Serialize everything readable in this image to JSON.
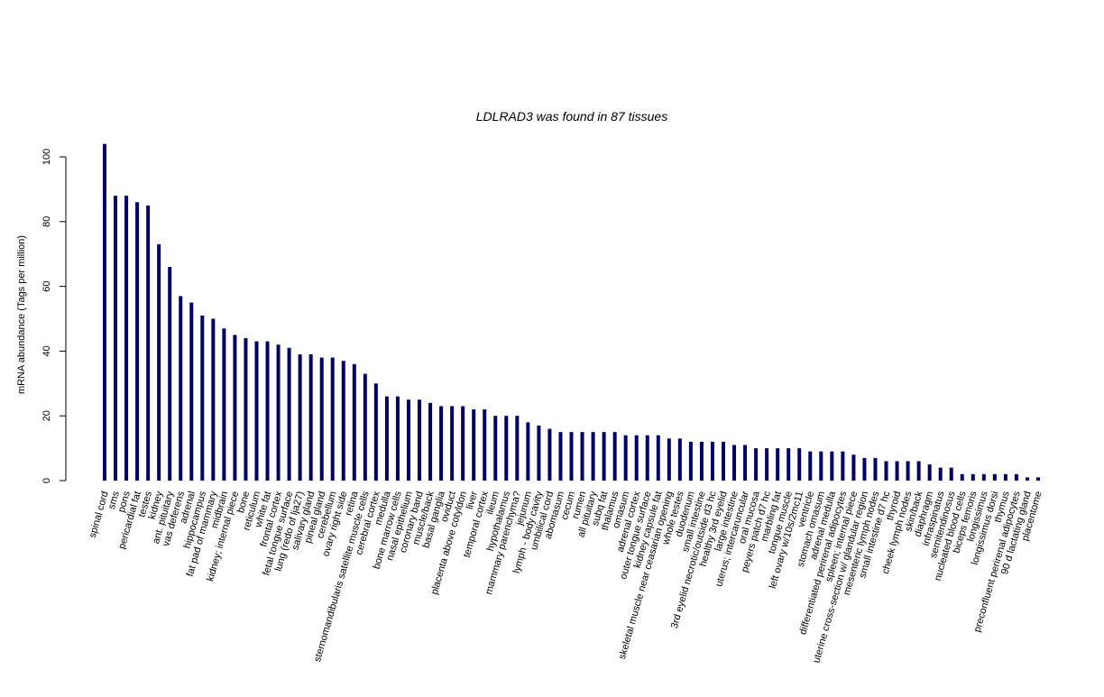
{
  "chart_data": {
    "type": "bar",
    "title": "LDLRAD3  was found in  87  tissues",
    "xlabel": "",
    "ylabel": "mRNA abundance (Tags per million)",
    "ylim": [
      0,
      104
    ],
    "yticks": [
      0,
      20,
      40,
      60,
      80,
      100
    ],
    "grid": false,
    "bar_color": "#000066",
    "categories": [
      "spinal cord",
      "sms",
      "pons",
      "pericardial fat",
      "testes",
      "kidney",
      "ant. pituitary",
      "vas deferens",
      "adrenal",
      "hippocampus",
      "fat pad of mammary",
      "midbrain",
      "kidney; internal piece",
      "bone",
      "reticulum",
      "white fat",
      "frontal cortex",
      "fetal tongue surface",
      "lung (redo of lja27)",
      "salivary gland",
      "pineal gland",
      "cerebellum",
      "ovary right side",
      "retina",
      "sternomandibularis satellite muscle cells",
      "cerebral cortex",
      "medulla",
      "bone marrow cells",
      "nasal epithelium",
      "coronary band",
      "muscle/back",
      "basal ganglia",
      "oviduct",
      "placenta above cotyldon",
      "liver",
      "temporal cortex",
      "ileum",
      "hypothalamus",
      "mammary parenchyma?",
      "jejunum",
      "lymph - body cavity",
      "umbilical cord",
      "abomasum",
      "cecum",
      "rumen",
      "all pituitary",
      "subq fat",
      "thalamus",
      "omasum",
      "adrenal cortex",
      "outer tongue surface",
      "kidney capsule fat",
      "skeletal muscle near ceasarian opening",
      "whole testes",
      "duodenum",
      "small intestine",
      "3rd eyelid necrotic/outside d3 hc",
      "healthy 3rd eyelid",
      "large intestine",
      "uterus; intercaruncular",
      "oral mucosa",
      "peyers patch d7 hc",
      "marbling fat",
      "tongue muscle",
      "left ovary w/10s/2mc11",
      "ventricle",
      "stomach omasum",
      "adrenal medulla",
      "differentiated perirenal adipocytes",
      "spleen; internal piece",
      "uterine cross-section w/ glandular region",
      "mesenteric lymph nodes",
      "small intestine d7 hc",
      "thyroid",
      "cheek lymph nodes",
      "skin/back",
      "diaphragm",
      "infraspinatus",
      "semitendinosus",
      "nucleated blood cells",
      "biceps femoris",
      "longissimus",
      "longissimus dorsi",
      "thymus",
      "preconfluent perirenal adipocytes",
      "90 d lactating gland",
      "placentome"
    ],
    "values": [
      104,
      88,
      88,
      86,
      85,
      73,
      66,
      57,
      55,
      51,
      50,
      47,
      45,
      44,
      43,
      43,
      42,
      41,
      39,
      39,
      38,
      38,
      37,
      36,
      33,
      30,
      26,
      26,
      25,
      25,
      24,
      23,
      23,
      23,
      22,
      22,
      20,
      20,
      20,
      18,
      17,
      16,
      15,
      15,
      15,
      15,
      15,
      15,
      14,
      14,
      14,
      14,
      13,
      13,
      12,
      12,
      12,
      12,
      11,
      11,
      10,
      10,
      10,
      10,
      10,
      9,
      9,
      9,
      9,
      8,
      7,
      7,
      6,
      6,
      6,
      6,
      5,
      4,
      4,
      2,
      2,
      2,
      2,
      2,
      2,
      1,
      1
    ]
  }
}
